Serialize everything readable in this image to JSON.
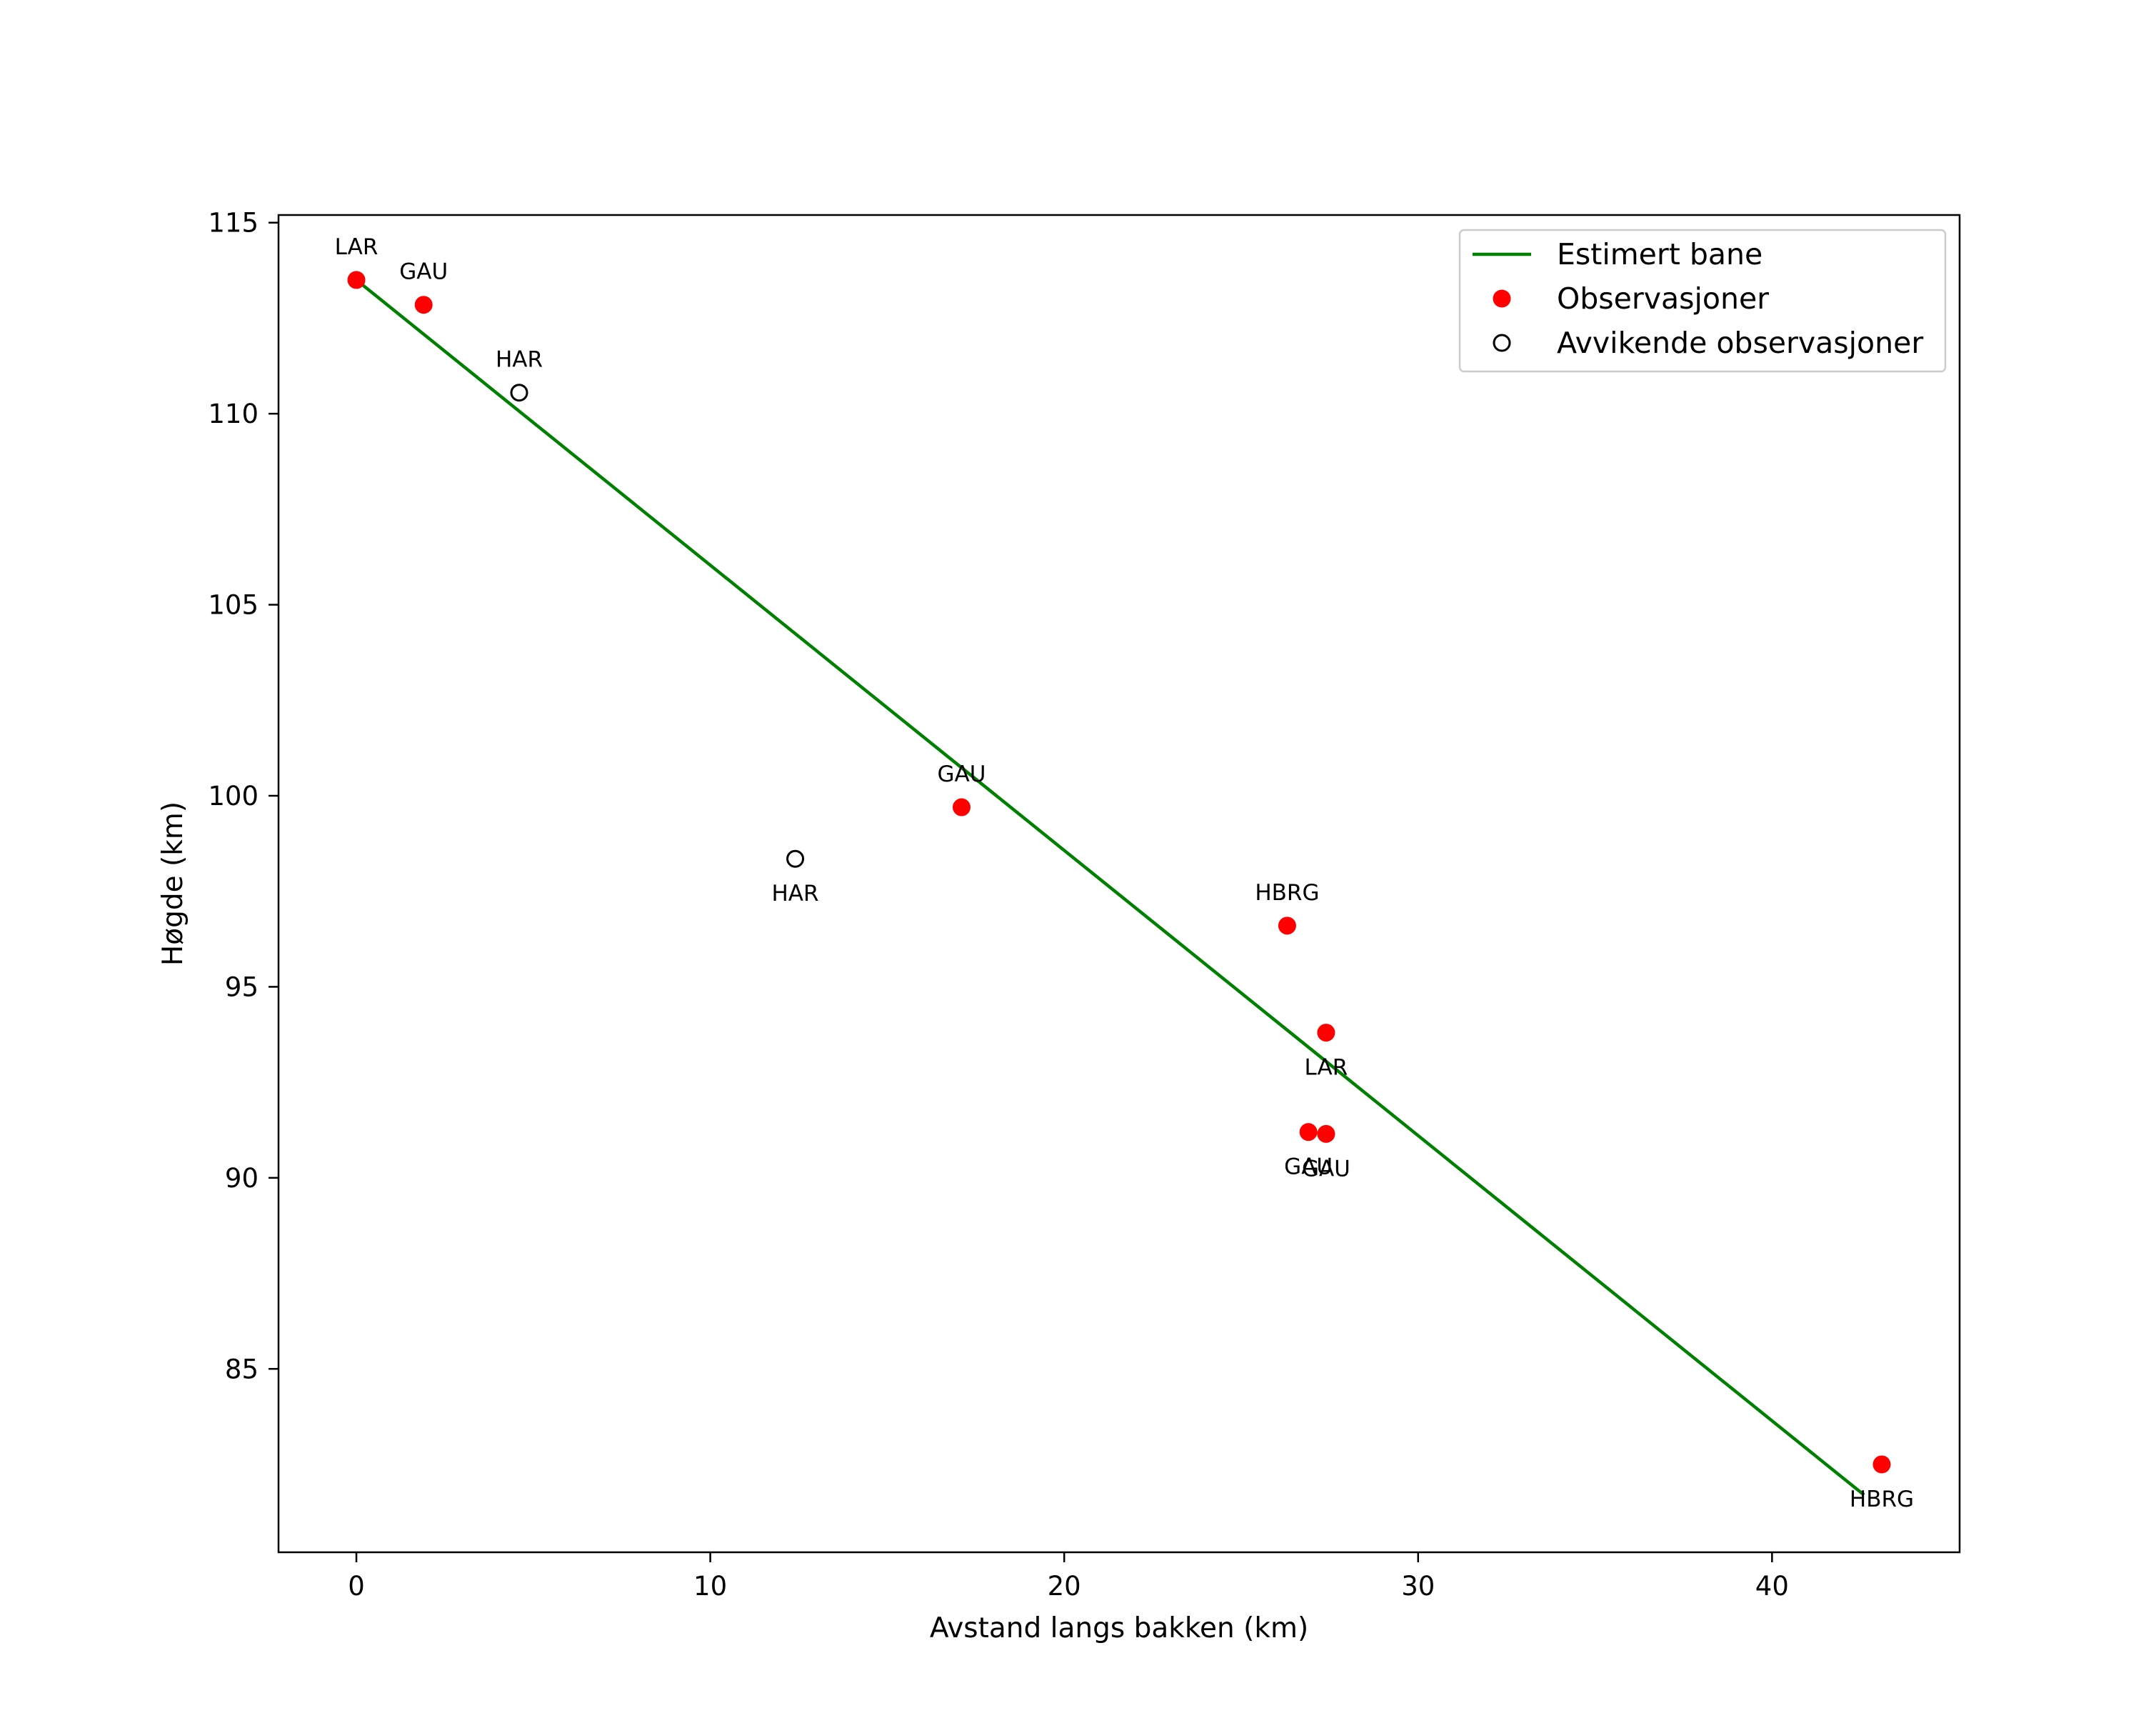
{
  "chart_data": {
    "type": "scatter",
    "title": "",
    "xlabel": "Avstand langs bakken (km)",
    "ylabel": "Høgde (km)",
    "xlim": [
      -2.2,
      45.3
    ],
    "ylim": [
      80.2,
      115.2
    ],
    "xticks": [
      0,
      10,
      20,
      30,
      40
    ],
    "yticks": [
      85,
      90,
      95,
      100,
      105,
      110,
      115
    ],
    "grid": false,
    "legend_position": "top-right",
    "series": [
      {
        "name": "Estimert bane",
        "kind": "line",
        "color": "#008000",
        "points": [
          [
            0.0,
            113.5
          ],
          [
            42.6,
            81.7
          ]
        ]
      },
      {
        "name": "Observasjoner",
        "kind": "marker",
        "color": "#ff0000",
        "points": [
          {
            "x": 0.0,
            "y": 113.5,
            "label": "LAR",
            "label_pos": "above"
          },
          {
            "x": 1.9,
            "y": 112.85,
            "label": "GAU",
            "label_pos": "above"
          },
          {
            "x": 17.1,
            "y": 99.7,
            "label": "GAU",
            "label_pos": "above"
          },
          {
            "x": 26.3,
            "y": 96.6,
            "label": "HBRG",
            "label_pos": "above"
          },
          {
            "x": 27.4,
            "y": 93.8,
            "label": "LAR",
            "label_pos": "below"
          },
          {
            "x": 26.9,
            "y": 91.2,
            "label": "GAU",
            "label_pos": "below"
          },
          {
            "x": 27.4,
            "y": 91.15,
            "label": "GAU",
            "label_pos": "below"
          },
          {
            "x": 43.1,
            "y": 82.5,
            "label": "HBRG",
            "label_pos": "below"
          }
        ]
      },
      {
        "name": "Avvikende observasjoner",
        "kind": "hollow-marker",
        "color": "#000000",
        "points": [
          {
            "x": 4.6,
            "y": 110.55,
            "label": "HAR",
            "label_pos": "above"
          },
          {
            "x": 12.4,
            "y": 98.35,
            "label": "HAR",
            "label_pos": "below"
          }
        ]
      }
    ]
  }
}
